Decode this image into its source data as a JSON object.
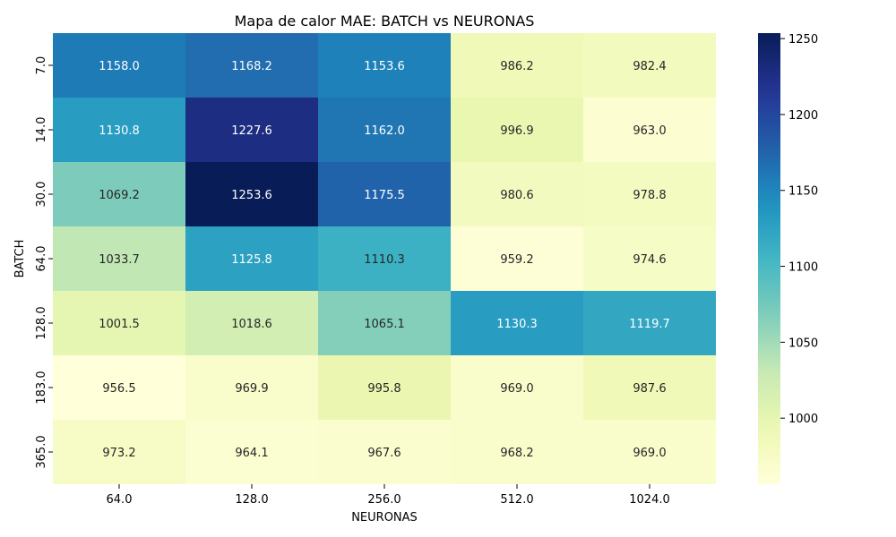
{
  "chart_data": {
    "type": "heatmap",
    "title": "Mapa de calor MAE: BATCH vs NEURONAS",
    "xlabel": "NEURONAS",
    "ylabel": "BATCH",
    "x_categories": [
      "64.0",
      "128.0",
      "256.0",
      "512.0",
      "1024.0"
    ],
    "y_categories": [
      "7.0",
      "14.0",
      "30.0",
      "64.0",
      "128.0",
      "183.0",
      "365.0"
    ],
    "values": [
      [
        1158.0,
        1168.2,
        1153.6,
        986.2,
        982.4
      ],
      [
        1130.8,
        1227.6,
        1162.0,
        996.9,
        963.0
      ],
      [
        1069.2,
        1253.6,
        1175.5,
        980.6,
        978.8
      ],
      [
        1033.7,
        1125.8,
        1110.3,
        959.2,
        974.6
      ],
      [
        1001.5,
        1018.6,
        1065.1,
        1130.3,
        1119.7
      ],
      [
        956.5,
        969.9,
        995.8,
        969.0,
        987.6
      ],
      [
        973.2,
        964.1,
        967.6,
        968.2,
        969.0
      ]
    ],
    "colormap": "YlGnBu",
    "vmin": 956.5,
    "vmax": 1253.6,
    "colorbar_ticks": [
      "1000",
      "1050",
      "1100",
      "1150",
      "1200",
      "1250"
    ],
    "colorbar_tick_values": [
      1000,
      1050,
      1100,
      1150,
      1200,
      1250
    ],
    "colors": {
      "dark_text": "#262626",
      "light_text": "#ffffff"
    }
  }
}
